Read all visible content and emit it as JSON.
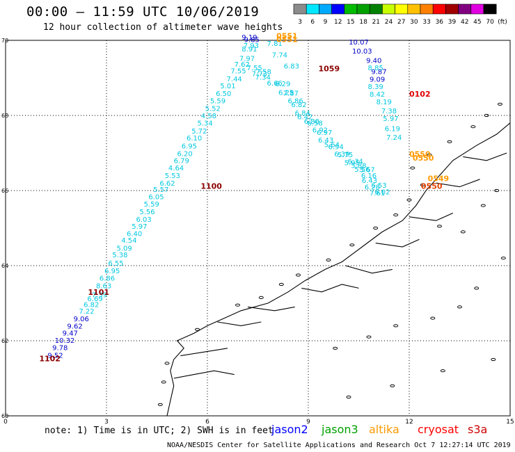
{
  "title": "00:00 – 11:59 UTC 10/06/2019",
  "subtitle": "12 hour collection of altimeter wave heights",
  "colorbar": {
    "ticks": [
      "3",
      "6",
      "9",
      "12",
      "15",
      "18",
      "21",
      "24",
      "27",
      "30",
      "33",
      "36",
      "39",
      "42",
      "45",
      "70"
    ],
    "unit": "(ft)",
    "colors": [
      "#8c8c8c",
      "#00e8ff",
      "#00aaff",
      "#0000ff",
      "#00bb00",
      "#00a000",
      "#008000",
      "#c8ff00",
      "#ffff00",
      "#ffc000",
      "#ff7f00",
      "#ff0000",
      "#a00000",
      "#800080",
      "#e000e0",
      "#000000"
    ]
  },
  "axes": {
    "y_labels": [
      "70",
      "68",
      "66",
      "64",
      "62",
      "60"
    ],
    "x_labels": [
      "0",
      "3",
      "6",
      "9",
      "12",
      "15"
    ],
    "y_range": [
      60,
      70
    ],
    "x_range": [
      0,
      15
    ]
  },
  "tracks": [
    {
      "name": "track_west",
      "color": "#00c8e0",
      "points": [
        {
          "lon": 1.48,
          "lat": 61.55,
          "v": "9.52",
          "c": "#0000c8"
        },
        {
          "lon": 1.62,
          "lat": 61.75,
          "v": "9.78",
          "c": "#0000c8"
        },
        {
          "lon": 1.76,
          "lat": 61.94,
          "v": "10.32",
          "c": "#0000c8"
        },
        {
          "lon": 1.92,
          "lat": 62.14,
          "v": "9.47",
          "c": "#0000c8"
        },
        {
          "lon": 2.06,
          "lat": 62.32,
          "v": "9.62",
          "c": "#0000c8"
        },
        {
          "lon": 2.25,
          "lat": 62.52,
          "v": "9.06",
          "c": "#0000c8"
        },
        {
          "lon": 2.41,
          "lat": 62.72,
          "v": "7.22",
          "c": "#00c8e0"
        },
        {
          "lon": 2.55,
          "lat": 62.9,
          "v": "6.82",
          "c": "#00c8e0"
        },
        {
          "lon": 2.66,
          "lat": 63.06,
          "v": "6.69",
          "c": "#00c8e0"
        },
        {
          "lon": 2.79,
          "lat": 63.16,
          "v": "7.39",
          "c": "#00c8e0"
        },
        {
          "lon": 2.92,
          "lat": 63.4,
          "v": "8.63",
          "c": "#00c8e0"
        },
        {
          "lon": 3.02,
          "lat": 63.6,
          "v": "6.86",
          "c": "#00c8e0"
        },
        {
          "lon": 3.17,
          "lat": 63.8,
          "v": "6.95",
          "c": "#00c8e0"
        },
        {
          "lon": 3.28,
          "lat": 64.0,
          "v": "6.55",
          "c": "#00c8e0"
        },
        {
          "lon": 3.4,
          "lat": 64.22,
          "v": "5.38",
          "c": "#00c8e0"
        },
        {
          "lon": 3.53,
          "lat": 64.4,
          "v": "5.09",
          "c": "#00c8e0"
        },
        {
          "lon": 3.67,
          "lat": 64.61,
          "v": "4.54",
          "c": "#00c8e0"
        },
        {
          "lon": 3.83,
          "lat": 64.79,
          "v": "6.40",
          "c": "#00c8e0"
        },
        {
          "lon": 3.98,
          "lat": 64.98,
          "v": "5.97",
          "c": "#00c8e0"
        },
        {
          "lon": 4.11,
          "lat": 65.17,
          "v": "6.03",
          "c": "#00c8e0"
        },
        {
          "lon": 4.21,
          "lat": 65.37,
          "v": "5.56",
          "c": "#00c8e0"
        },
        {
          "lon": 4.34,
          "lat": 65.57,
          "v": "5.59",
          "c": "#00c8e0"
        },
        {
          "lon": 4.48,
          "lat": 65.77,
          "v": "6.05",
          "c": "#00c8e0"
        },
        {
          "lon": 4.62,
          "lat": 65.96,
          "v": "5.57",
          "c": "#00c8e0"
        },
        {
          "lon": 4.81,
          "lat": 66.13,
          "v": "6.62",
          "c": "#00c8e0"
        },
        {
          "lon": 4.96,
          "lat": 66.33,
          "v": "5.53",
          "c": "#00c8e0"
        },
        {
          "lon": 5.07,
          "lat": 66.54,
          "v": "4.64",
          "c": "#00c8e0"
        },
        {
          "lon": 5.23,
          "lat": 66.73,
          "v": "6.79",
          "c": "#00c8e0"
        },
        {
          "lon": 5.33,
          "lat": 66.92,
          "v": "6.20",
          "c": "#00c8e0"
        },
        {
          "lon": 5.46,
          "lat": 67.12,
          "v": "6.95",
          "c": "#00c8e0"
        },
        {
          "lon": 5.61,
          "lat": 67.33,
          "v": "6.10",
          "c": "#00c8e0"
        },
        {
          "lon": 5.76,
          "lat": 67.52,
          "v": "5.72",
          "c": "#00c8e0"
        },
        {
          "lon": 5.93,
          "lat": 67.73,
          "v": "5.34",
          "c": "#00c8e0"
        },
        {
          "lon": 6.04,
          "lat": 67.93,
          "v": "4.58",
          "c": "#00c8e0"
        },
        {
          "lon": 6.16,
          "lat": 68.12,
          "v": "5.52",
          "c": "#00c8e0"
        },
        {
          "lon": 6.31,
          "lat": 68.32,
          "v": "5.59",
          "c": "#00c8e0"
        },
        {
          "lon": 6.48,
          "lat": 68.52,
          "v": "6.50",
          "c": "#00c8e0"
        },
        {
          "lon": 6.61,
          "lat": 68.72,
          "v": "5.01",
          "c": "#00c8e0"
        },
        {
          "lon": 6.8,
          "lat": 68.91,
          "v": "7.44",
          "c": "#00c8e0"
        },
        {
          "lon": 6.92,
          "lat": 69.12,
          "v": "7.55",
          "c": "#00c8e0"
        },
        {
          "lon": 7.03,
          "lat": 69.3,
          "v": "7.62",
          "c": "#00c8e0"
        },
        {
          "lon": 7.18,
          "lat": 69.45,
          "v": "7.97",
          "c": "#00c8e0"
        },
        {
          "lon": 7.25,
          "lat": 69.7,
          "v": "8.91",
          "c": "#00c8e0"
        },
        {
          "lon": 7.3,
          "lat": 69.8,
          "v": "7.93",
          "c": "#00c8e0"
        },
        {
          "lon": 7.32,
          "lat": 69.95,
          "v": "9.85",
          "c": "#0000c8"
        },
        {
          "lon": 7.25,
          "lat": 70.02,
          "v": "9.19",
          "c": "#0000c8"
        }
      ]
    },
    {
      "name": "track_east",
      "color": "#00c8e0",
      "points": [
        {
          "lon": 7.4,
          "lat": 69.2,
          "v": "7.55",
          "c": "#00c8e0"
        },
        {
          "lon": 7.55,
          "lat": 69.05,
          "v": "7.73",
          "c": "#00c8e0"
        },
        {
          "lon": 7.65,
          "lat": 68.95,
          "v": "7.34",
          "c": "#00c8e0"
        },
        {
          "lon": 7.67,
          "lat": 69.1,
          "v": "7.58",
          "c": "#00c8e0"
        },
        {
          "lon": 8.0,
          "lat": 68.8,
          "v": "6.66",
          "c": "#00c8e0"
        },
        {
          "lon": 8.24,
          "lat": 68.78,
          "v": "6.29",
          "c": "#00c8e0"
        },
        {
          "lon": 8.34,
          "lat": 68.55,
          "v": "6.25",
          "c": "#00c8e0"
        },
        {
          "lon": 8.48,
          "lat": 68.53,
          "v": "7.87",
          "c": "#00c8e0"
        },
        {
          "lon": 8.62,
          "lat": 68.32,
          "v": "6.86",
          "c": "#00c8e0"
        },
        {
          "lon": 8.72,
          "lat": 68.22,
          "v": "6.82",
          "c": "#00c8e0"
        },
        {
          "lon": 8.83,
          "lat": 68.0,
          "v": "6.84",
          "c": "#00c8e0"
        },
        {
          "lon": 8.9,
          "lat": 67.9,
          "v": "6.42",
          "c": "#00c8e0"
        },
        {
          "lon": 9.1,
          "lat": 67.78,
          "v": "6.88",
          "c": "#00c8e0"
        },
        {
          "lon": 9.2,
          "lat": 67.73,
          "v": "6.58",
          "c": "#00c8e0"
        },
        {
          "lon": 9.35,
          "lat": 67.55,
          "v": "6.92",
          "c": "#00c8e0"
        },
        {
          "lon": 9.48,
          "lat": 67.48,
          "v": "6.97",
          "c": "#00c8e0"
        },
        {
          "lon": 9.52,
          "lat": 67.28,
          "v": "6.43",
          "c": "#00c8e0"
        },
        {
          "lon": 9.7,
          "lat": 67.16,
          "v": "5.64",
          "c": "#00c8e0"
        },
        {
          "lon": 9.82,
          "lat": 67.1,
          "v": "6.94",
          "c": "#00c8e0"
        },
        {
          "lon": 10.0,
          "lat": 66.91,
          "v": "6.39",
          "c": "#00c8e0"
        },
        {
          "lon": 10.1,
          "lat": 66.89,
          "v": "5.75",
          "c": "#00c8e0"
        },
        {
          "lon": 10.3,
          "lat": 66.68,
          "v": "5.95",
          "c": "#00c8e0"
        },
        {
          "lon": 10.4,
          "lat": 66.71,
          "v": "6.34",
          "c": "#00c8e0"
        },
        {
          "lon": 10.5,
          "lat": 66.6,
          "v": "5.88",
          "c": "#00c8e0"
        },
        {
          "lon": 10.6,
          "lat": 66.5,
          "v": "5.56",
          "c": "#00c8e0"
        },
        {
          "lon": 10.75,
          "lat": 66.49,
          "v": "5.67",
          "c": "#00c8e0"
        },
        {
          "lon": 10.8,
          "lat": 66.33,
          "v": "6.16",
          "c": "#00c8e0"
        },
        {
          "lon": 10.82,
          "lat": 66.2,
          "v": "6.43",
          "c": "#00c8e0"
        },
        {
          "lon": 10.9,
          "lat": 66.03,
          "v": "6.28",
          "c": "#00c8e0"
        },
        {
          "lon": 11.1,
          "lat": 66.07,
          "v": "6.53",
          "c": "#00c8e0"
        },
        {
          "lon": 11.05,
          "lat": 65.87,
          "v": "7.61",
          "c": "#00c8e0"
        },
        {
          "lon": 11.2,
          "lat": 65.9,
          "v": "6.02",
          "c": "#00c8e0"
        }
      ]
    },
    {
      "name": "track_north",
      "color": "#0000c8",
      "points": [
        {
          "lon": 10.5,
          "lat": 69.89,
          "v": "10.07",
          "c": "#0000c8"
        },
        {
          "lon": 10.6,
          "lat": 69.65,
          "v": "10.03",
          "c": "#0000c8"
        },
        {
          "lon": 10.95,
          "lat": 69.4,
          "v": "9.40",
          "c": "#0000c8"
        },
        {
          "lon": 11.1,
          "lat": 69.1,
          "v": "9.87",
          "c": "#0000c8"
        },
        {
          "lon": 11.0,
          "lat": 69.2,
          "v": "8.85",
          "c": "#00c8e0"
        },
        {
          "lon": 11.05,
          "lat": 68.9,
          "v": "9.09",
          "c": "#0000c8"
        },
        {
          "lon": 11.0,
          "lat": 68.7,
          "v": "8.39",
          "c": "#00c8e0"
        },
        {
          "lon": 11.05,
          "lat": 68.5,
          "v": "8.42",
          "c": "#00c8e0"
        },
        {
          "lon": 11.25,
          "lat": 68.3,
          "v": "8.19",
          "c": "#00c8e0"
        },
        {
          "lon": 11.4,
          "lat": 68.06,
          "v": "7.38",
          "c": "#00c8e0"
        },
        {
          "lon": 11.45,
          "lat": 67.85,
          "v": "5.97",
          "c": "#00c8e0"
        },
        {
          "lon": 11.5,
          "lat": 67.58,
          "v": "6.19",
          "c": "#00c8e0"
        },
        {
          "lon": 11.55,
          "lat": 67.35,
          "v": "7.24",
          "c": "#00c8e0"
        },
        {
          "lon": 8.0,
          "lat": 69.85,
          "v": "7.81",
          "c": "#00c8e0"
        },
        {
          "lon": 8.15,
          "lat": 69.55,
          "v": "7.74",
          "c": "#00c8e0"
        },
        {
          "lon": 8.5,
          "lat": 69.25,
          "v": "6.83",
          "c": "#00c8e0"
        }
      ]
    }
  ],
  "time_labels": [
    {
      "lon": 1.0,
      "lat": 61.45,
      "t": "1102",
      "c": "#8b0000"
    },
    {
      "lon": 2.45,
      "lat": 63.22,
      "t": "1101",
      "c": "#8b0000"
    },
    {
      "lon": 5.8,
      "lat": 66.05,
      "t": "1100",
      "c": "#8b0000"
    },
    {
      "lon": 9.3,
      "lat": 69.18,
      "t": "1059",
      "c": "#8b0000"
    },
    {
      "lon": 12.0,
      "lat": 68.5,
      "t": "0102",
      "c": "#e00000"
    },
    {
      "lon": 8.05,
      "lat": 69.95,
      "t": "0551",
      "c": "#ff9900"
    },
    {
      "lon": 8.05,
      "lat": 70.05,
      "t": "0551",
      "c": "#ff9900"
    },
    {
      "lon": 12.0,
      "lat": 66.9,
      "t": "0550",
      "c": "#ff9900"
    },
    {
      "lon": 12.1,
      "lat": 66.8,
      "t": "0550",
      "c": "#ff9900"
    },
    {
      "lon": 12.55,
      "lat": 66.25,
      "t": "0549",
      "c": "#ff9900"
    },
    {
      "lon": 12.35,
      "lat": 66.05,
      "t": "0550",
      "c": "#e04000"
    }
  ],
  "note": "note: 1) Time is in UTC; 2) SWH is in feet",
  "satellites": [
    {
      "name": "jason2",
      "color": "#0000ff"
    },
    {
      "name": "jason3",
      "color": "#00a000"
    },
    {
      "name": "altika",
      "color": "#ff9900"
    },
    {
      "name": "cryosat",
      "color": "#ff0000"
    },
    {
      "name": "s3a",
      "color": "#cc0000"
    }
  ],
  "credit": "NOAA/NESDIS Center for Satellite Applications and Research   Oct  7 12:27:14 UTC 2019"
}
